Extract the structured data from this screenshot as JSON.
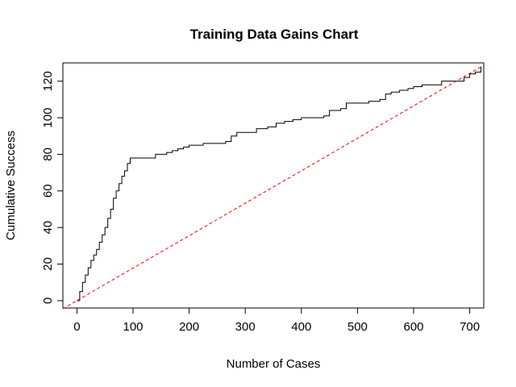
{
  "chart_data": {
    "type": "line",
    "title": "Training Data Gains Chart",
    "xlabel": "Number of Cases",
    "ylabel": "Cumulative Success",
    "xlim": [
      -25,
      725
    ],
    "ylim": [
      -4,
      130
    ],
    "x_ticks": [
      0,
      100,
      200,
      300,
      400,
      500,
      600,
      700
    ],
    "y_ticks": [
      0,
      20,
      40,
      60,
      80,
      100,
      120
    ],
    "series": [
      {
        "line_style": "solid-step",
        "color": "#000000",
        "x": [
          0,
          5,
          10,
          15,
          20,
          25,
          30,
          35,
          40,
          45,
          50,
          55,
          60,
          65,
          70,
          75,
          80,
          85,
          90,
          95,
          100,
          110,
          130,
          140,
          150,
          160,
          170,
          180,
          190,
          200,
          210,
          225,
          250,
          265,
          275,
          285,
          300,
          320,
          340,
          355,
          370,
          385,
          400,
          420,
          440,
          450,
          470,
          480,
          500,
          520,
          540,
          550,
          560,
          575,
          590,
          600,
          615,
          630,
          650,
          670,
          690,
          700,
          710,
          720
        ],
        "y": [
          0,
          5,
          10,
          14,
          18,
          22,
          25,
          28,
          32,
          36,
          40,
          45,
          50,
          56,
          60,
          64,
          68,
          71,
          75,
          78,
          78,
          78,
          78,
          80,
          80,
          81,
          82,
          83,
          84,
          85,
          85,
          86,
          86,
          87,
          90,
          92,
          92,
          94,
          95,
          97,
          98,
          99,
          100,
          100,
          101,
          104,
          105,
          108,
          108,
          109,
          110,
          113,
          114,
          115,
          116,
          117,
          118,
          118,
          120,
          120,
          122,
          124,
          125,
          128
        ]
      },
      {
        "line_style": "dashed",
        "color": "#ff0000",
        "x": [
          -25,
          725
        ],
        "y": [
          -4.4,
          128.7
        ]
      }
    ],
    "grid": false,
    "legend": "none"
  }
}
